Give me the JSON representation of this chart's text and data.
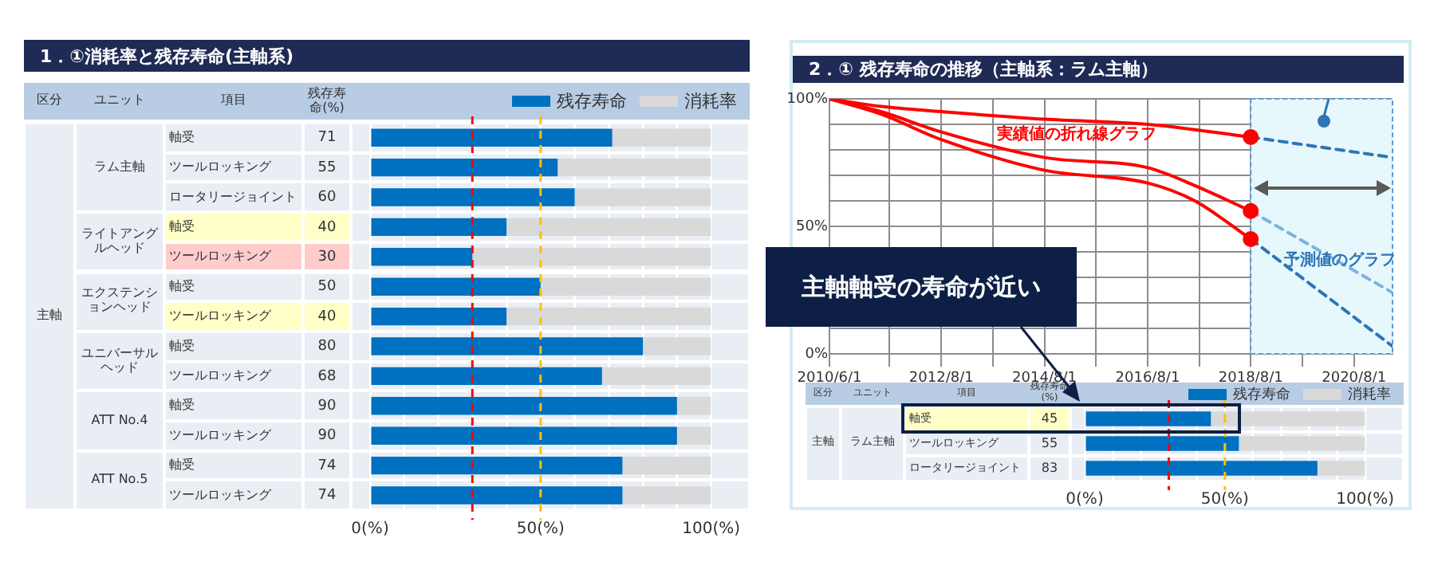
{
  "chart_data": [
    {
      "type": "bar",
      "orientation": "horizontal",
      "stacked": true,
      "title": "1．①消耗率と残存寿命(主軸系)",
      "categories": [
        "軸受",
        "ツールロッキング",
        "ロータリージョイント",
        "軸受",
        "ツールロッキング",
        "軸受",
        "ツールロッキング",
        "軸受",
        "ツールロッキング",
        "軸受",
        "ツールロッキング",
        "軸受",
        "ツールロッキング"
      ],
      "series": [
        {
          "name": "残存寿命",
          "color": "#0070c0",
          "values": [
            71,
            55,
            60,
            40,
            30,
            50,
            40,
            80,
            68,
            90,
            90,
            74,
            74
          ],
          "value_labels": [
            "71",
            "55",
            "60",
            "40",
            "30",
            "50",
            "40",
            "80",
            "68",
            "90",
            "90",
            "74",
            "74"
          ]
        },
        {
          "name": "消耗率",
          "color": "#d9d9d9",
          "values": [
            29,
            45,
            40,
            60,
            70,
            50,
            60,
            20,
            32,
            10,
            10,
            26,
            26
          ]
        }
      ],
      "xlim": [
        0,
        100
      ],
      "xticks": [
        {
          "value": 0,
          "label": "0(%)"
        },
        {
          "value": 10,
          "label": null
        },
        {
          "value": 20,
          "label": null
        },
        {
          "value": 30,
          "label": null
        },
        {
          "value": 40,
          "label": null
        },
        {
          "value": 50,
          "label": "50(%)"
        },
        {
          "value": 60,
          "label": null
        },
        {
          "value": 70,
          "label": null
        },
        {
          "value": 80,
          "label": null
        },
        {
          "value": 90,
          "label": null
        },
        {
          "value": 100,
          "label": "100(%)"
        }
      ],
      "grid": "x",
      "legend": "top right",
      "ref_lines": [
        {
          "axis": "x",
          "value": 30,
          "color": "#ff0000",
          "line_style": "dashed"
        },
        {
          "axis": "x",
          "value": 50,
          "color": "#ffc000",
          "line_style": "dashed"
        }
      ],
      "annotations": [
        "区分",
        "ユニット",
        "項目",
        "残存寿命(%)",
        "主軸",
        "ラム主軸",
        "ライトアングルヘッド",
        "エクステンションヘッド",
        "ユニバーサルヘッド",
        "ATT No.4",
        "ATT No.5"
      ]
    },
    {
      "type": "line",
      "title": "2．① 残存寿命の推移（主軸系：ラム主軸）",
      "xlim": [
        "2010-06-01",
        "2021-05-01"
      ],
      "xticks": [
        {
          "value": "2010-06-01",
          "label": "2010/6/1"
        },
        {
          "value": "2011-08-01",
          "label": null
        },
        {
          "value": "2012-08-01",
          "label": "2012/8/1"
        },
        {
          "value": "2013-08-01",
          "label": null
        },
        {
          "value": "2014-08-01",
          "label": "2014/8/1"
        },
        {
          "value": "2015-08-01",
          "label": null
        },
        {
          "value": "2016-08-01",
          "label": "2016/8/1"
        },
        {
          "value": "2017-08-01",
          "label": null
        },
        {
          "value": "2018-08-01",
          "label": "2018/8/1"
        },
        {
          "value": "2019-08-01",
          "label": null
        },
        {
          "value": "2020-08-01",
          "label": "2020/8/1"
        }
      ],
      "ylim": [
        0,
        100
      ],
      "yticks": [
        {
          "value": 0,
          "label": "0%"
        },
        {
          "value": 10,
          "label": null
        },
        {
          "value": 20,
          "label": null
        },
        {
          "value": 30,
          "label": null
        },
        {
          "value": 40,
          "label": null
        },
        {
          "value": 50,
          "label": "50%"
        },
        {
          "value": 60,
          "label": null
        },
        {
          "value": 70,
          "label": null
        },
        {
          "value": 80,
          "label": null
        },
        {
          "value": 90,
          "label": null
        },
        {
          "value": 100,
          "label": "100%"
        }
      ],
      "grid": true,
      "marker": "none",
      "series": [
        {
          "color": "#ff0000",
          "x": [
            "2010-06-01",
            "2011-06-01",
            "2012-08-01",
            "2014-08-01",
            "2016-08-01",
            "2018-08-01"
          ],
          "values": [
            100,
            97,
            95,
            92,
            90,
            85
          ]
        },
        {
          "color": "#ff0000",
          "x": [
            "2010-06-01",
            "2011-06-01",
            "2012-08-01",
            "2014-08-01",
            "2016-08-01",
            "2017-07-01",
            "2018-08-01"
          ],
          "values": [
            100,
            95,
            87,
            77,
            73,
            66,
            56
          ]
        },
        {
          "color": "#ff0000",
          "x": [
            "2010-06-01",
            "2011-06-01",
            "2012-08-01",
            "2014-08-01",
            "2016-08-01",
            "2017-07-01",
            "2018-08-01"
          ],
          "values": [
            100,
            94,
            84,
            72,
            67,
            60,
            45
          ]
        },
        {
          "type": "scatter",
          "marker": "circle",
          "color": "#ff0000",
          "x": [
            "2018-08-01",
            "2018-08-01",
            "2018-08-01"
          ],
          "values": [
            85,
            56,
            45
          ]
        },
        {
          "color": "#2e75b6",
          "line_style": "dashed",
          "x": [
            "2018-08-01",
            "2021-05-01"
          ],
          "values": [
            85,
            77
          ]
        },
        {
          "color": "#7fb2e0",
          "line_style": "dashed",
          "x": [
            "2018-08-01",
            "2021-05-01"
          ],
          "values": [
            56,
            24
          ]
        },
        {
          "color": "#2e75b6",
          "line_style": "dashed",
          "x": [
            "2018-08-01",
            "2021-05-01"
          ],
          "values": [
            45,
            3
          ]
        }
      ],
      "bands": [
        {
          "axis": "x",
          "from": "2018-08-01",
          "to": "2021-05-01",
          "color": "#e6f8fc"
        }
      ],
      "annotations": [
        "実績値の折れ線グラフ",
        "予測値のグラフ",
        "主軸軸受の寿命が近い"
      ]
    },
    {
      "type": "bar",
      "orientation": "horizontal",
      "stacked": true,
      "categories": [
        "軸受",
        "ツールロッキング",
        "ロータリージョイント"
      ],
      "series": [
        {
          "name": "残存寿命",
          "color": "#0070c0",
          "values": [
            45,
            55,
            83
          ],
          "value_labels": [
            "45",
            "55",
            "83"
          ]
        },
        {
          "name": "消耗率",
          "color": "#d9d9d9",
          "values": [
            55,
            45,
            17
          ]
        }
      ],
      "xlim": [
        0,
        100
      ],
      "xticks": [
        {
          "value": 0,
          "label": "0(%)"
        },
        {
          "value": 10,
          "label": null
        },
        {
          "value": 20,
          "label": null
        },
        {
          "value": 30,
          "label": null
        },
        {
          "value": 40,
          "label": null
        },
        {
          "value": 50,
          "label": "50(%)"
        },
        {
          "value": 60,
          "label": null
        },
        {
          "value": 70,
          "label": null
        },
        {
          "value": 80,
          "label": null
        },
        {
          "value": 90,
          "label": null
        },
        {
          "value": 100,
          "label": "100(%)"
        }
      ],
      "grid": "x",
      "legend": "top right",
      "ref_lines": [
        {
          "axis": "x",
          "value": 30,
          "color": "#ff0000",
          "line_style": "dashed"
        },
        {
          "axis": "x",
          "value": 50,
          "color": "#ffc000",
          "line_style": "dashed"
        }
      ],
      "annotations": [
        "区分",
        "ユニット",
        "項目",
        "残存寿命(%)",
        "主軸",
        "ラム主軸"
      ]
    }
  ]
}
